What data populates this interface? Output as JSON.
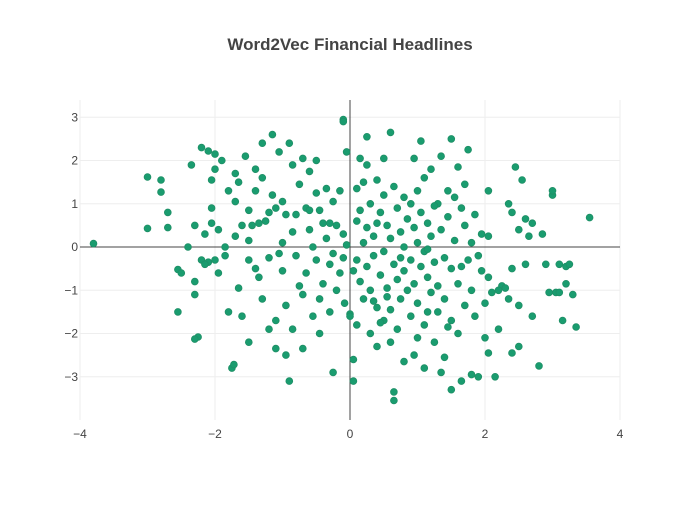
{
  "chart_data": {
    "type": "scatter",
    "title": "Word2Vec Financial Headlines",
    "xlabel": "",
    "ylabel": "",
    "xlim": [
      -4,
      4
    ],
    "ylim": [
      -4,
      3.4
    ],
    "x_ticks": [
      -4,
      -2,
      0,
      2,
      4
    ],
    "y_ticks": [
      -3,
      -2,
      -1,
      0,
      1,
      2,
      3
    ],
    "x_tick_labels": [
      "−4",
      "−2",
      "0",
      "2",
      "4"
    ],
    "y_tick_labels": [
      "−3",
      "−2",
      "−1",
      "0",
      "1",
      "2",
      "3"
    ],
    "grid": true,
    "zero_lines": true,
    "marker_color": "#1a9c6f",
    "marker_symbol": "circle",
    "series": [
      {
        "points": [
          [
            -3.8,
            0.08
          ],
          [
            -3.0,
            1.62
          ],
          [
            -3.0,
            0.43
          ],
          [
            -2.8,
            1.27
          ],
          [
            -2.8,
            1.55
          ],
          [
            -2.7,
            0.8
          ],
          [
            -2.7,
            0.45
          ],
          [
            -2.55,
            -0.52
          ],
          [
            -2.5,
            -0.6
          ],
          [
            -2.55,
            -1.5
          ],
          [
            -2.4,
            0.0
          ],
          [
            -2.35,
            1.9
          ],
          [
            -2.3,
            0.5
          ],
          [
            -2.3,
            -0.8
          ],
          [
            -2.3,
            -1.1
          ],
          [
            -2.2,
            2.3
          ],
          [
            -2.15,
            0.3
          ],
          [
            -2.2,
            -0.3
          ],
          [
            -2.25,
            -2.08
          ],
          [
            -2.3,
            -2.13
          ],
          [
            -2.1,
            2.22
          ],
          [
            -2.05,
            1.55
          ],
          [
            -2.1,
            -0.35
          ],
          [
            -2.0,
            2.15
          ],
          [
            -2.0,
            1.8
          ],
          [
            -2.05,
            0.55
          ],
          [
            -1.95,
            0.4
          ],
          [
            -2.0,
            -0.3
          ],
          [
            -1.95,
            -0.6
          ],
          [
            -1.9,
            2.0
          ],
          [
            -1.85,
            0.0
          ],
          [
            -1.8,
            1.3
          ],
          [
            -1.8,
            -1.5
          ],
          [
            -1.75,
            -2.8
          ],
          [
            -1.72,
            -2.72
          ],
          [
            -1.7,
            1.7
          ],
          [
            -1.7,
            1.05
          ],
          [
            -1.7,
            0.25
          ],
          [
            -1.65,
            -0.95
          ],
          [
            -1.6,
            -1.6
          ],
          [
            -1.55,
            2.1
          ],
          [
            -1.5,
            0.85
          ],
          [
            -1.5,
            0.15
          ],
          [
            -1.5,
            -2.2
          ],
          [
            -1.45,
            0.5
          ],
          [
            -1.4,
            1.8
          ],
          [
            -1.4,
            -0.5
          ],
          [
            -1.35,
            -0.7
          ],
          [
            -1.3,
            2.4
          ],
          [
            -1.3,
            1.6
          ],
          [
            -1.3,
            -1.2
          ],
          [
            -1.25,
            0.6
          ],
          [
            -1.2,
            -0.25
          ],
          [
            -1.2,
            -1.9
          ],
          [
            -1.15,
            2.6
          ],
          [
            -1.15,
            1.2
          ],
          [
            -1.1,
            0.9
          ],
          [
            -1.1,
            -1.7
          ],
          [
            -1.1,
            -2.35
          ],
          [
            -1.05,
            2.2
          ],
          [
            -1.0,
            1.05
          ],
          [
            -1.0,
            0.1
          ],
          [
            -1.0,
            -0.55
          ],
          [
            -0.95,
            -1.35
          ],
          [
            -0.95,
            -2.5
          ],
          [
            -0.9,
            2.4
          ],
          [
            -0.9,
            -3.1
          ],
          [
            -0.85,
            1.9
          ],
          [
            -0.85,
            0.35
          ],
          [
            -0.8,
            0.75
          ],
          [
            -0.8,
            -0.2
          ],
          [
            -0.75,
            1.45
          ],
          [
            -0.75,
            -0.9
          ],
          [
            -0.7,
            2.05
          ],
          [
            -0.7,
            -1.1
          ],
          [
            -0.7,
            -2.35
          ],
          [
            -0.65,
            0.9
          ],
          [
            -0.65,
            -0.6
          ],
          [
            -0.6,
            1.75
          ],
          [
            -0.6,
            0.4
          ],
          [
            -0.55,
            0.0
          ],
          [
            -0.55,
            -1.6
          ],
          [
            -0.5,
            2.0
          ],
          [
            -0.5,
            1.25
          ],
          [
            -0.5,
            -0.3
          ],
          [
            -0.45,
            -1.2
          ],
          [
            -0.45,
            -2.0
          ],
          [
            -0.4,
            0.55
          ],
          [
            -0.4,
            -0.85
          ],
          [
            -0.35,
            1.35
          ],
          [
            -0.35,
            0.2
          ],
          [
            -0.3,
            -0.4
          ],
          [
            -0.3,
            -1.5
          ],
          [
            -0.25,
            1.05
          ],
          [
            -0.25,
            -0.15
          ],
          [
            -0.25,
            -2.9
          ],
          [
            -0.2,
            0.5
          ],
          [
            -0.2,
            -1.0
          ],
          [
            -0.15,
            1.3
          ],
          [
            -0.15,
            -0.6
          ],
          [
            -0.1,
            2.95
          ],
          [
            -0.1,
            2.9
          ],
          [
            -0.1,
            0.3
          ],
          [
            -0.08,
            -1.3
          ],
          [
            -0.05,
            2.2
          ],
          [
            -0.05,
            0.05
          ],
          [
            0.0,
            -1.55
          ],
          [
            0.0,
            -1.6
          ],
          [
            0.05,
            -2.6
          ],
          [
            0.05,
            -3.1
          ],
          [
            0.1,
            1.35
          ],
          [
            0.1,
            0.6
          ],
          [
            0.1,
            -0.3
          ],
          [
            0.1,
            -1.8
          ],
          [
            0.15,
            2.05
          ],
          [
            0.15,
            0.85
          ],
          [
            0.15,
            -0.8
          ],
          [
            0.2,
            1.5
          ],
          [
            0.2,
            0.1
          ],
          [
            0.2,
            -1.2
          ],
          [
            0.25,
            2.55
          ],
          [
            0.25,
            0.45
          ],
          [
            0.25,
            -0.45
          ],
          [
            0.3,
            1.0
          ],
          [
            0.3,
            -1.0
          ],
          [
            0.3,
            -2.0
          ],
          [
            0.35,
            0.25
          ],
          [
            0.35,
            -0.2
          ],
          [
            0.4,
            1.55
          ],
          [
            0.4,
            0.55
          ],
          [
            0.4,
            -1.4
          ],
          [
            0.4,
            -2.3
          ],
          [
            0.45,
            0.8
          ],
          [
            0.45,
            -0.65
          ],
          [
            0.5,
            2.05
          ],
          [
            0.5,
            1.2
          ],
          [
            0.5,
            -0.1
          ],
          [
            0.5,
            -1.7
          ],
          [
            0.55,
            0.5
          ],
          [
            0.55,
            -0.95
          ],
          [
            0.6,
            2.65
          ],
          [
            0.6,
            0.2
          ],
          [
            0.6,
            -1.45
          ],
          [
            0.6,
            -2.2
          ],
          [
            0.65,
            1.4
          ],
          [
            0.65,
            -0.4
          ],
          [
            0.65,
            -3.55
          ],
          [
            0.65,
            -3.35
          ],
          [
            0.7,
            0.9
          ],
          [
            0.7,
            -0.75
          ],
          [
            0.7,
            -1.9
          ],
          [
            0.75,
            0.35
          ],
          [
            0.75,
            -1.2
          ],
          [
            0.8,
            1.15
          ],
          [
            0.8,
            0.0
          ],
          [
            0.8,
            -0.55
          ],
          [
            0.8,
            -2.65
          ],
          [
            0.85,
            0.65
          ],
          [
            0.85,
            -1.0
          ],
          [
            0.9,
            1.0
          ],
          [
            0.9,
            -0.3
          ],
          [
            0.9,
            -1.6
          ],
          [
            0.95,
            2.05
          ],
          [
            0.95,
            0.45
          ],
          [
            0.95,
            -0.85
          ],
          [
            1.0,
            1.3
          ],
          [
            1.0,
            0.1
          ],
          [
            1.0,
            -1.3
          ],
          [
            1.0,
            -2.1
          ],
          [
            1.05,
            2.45
          ],
          [
            1.05,
            0.8
          ],
          [
            1.05,
            -0.45
          ],
          [
            1.1,
            1.6
          ],
          [
            1.1,
            -0.1
          ],
          [
            1.1,
            -1.8
          ],
          [
            1.1,
            -2.8
          ],
          [
            1.15,
            0.55
          ],
          [
            1.15,
            -0.7
          ],
          [
            1.2,
            1.8
          ],
          [
            1.2,
            0.25
          ],
          [
            1.2,
            -1.05
          ],
          [
            1.25,
            -0.35
          ],
          [
            1.25,
            -2.2
          ],
          [
            1.3,
            1.0
          ],
          [
            1.3,
            -0.9
          ],
          [
            1.3,
            -1.5
          ],
          [
            1.35,
            2.1
          ],
          [
            1.35,
            0.4
          ],
          [
            1.4,
            -0.25
          ],
          [
            1.4,
            -1.2
          ],
          [
            1.4,
            -2.55
          ],
          [
            1.45,
            1.3
          ],
          [
            1.45,
            0.7
          ],
          [
            1.5,
            2.5
          ],
          [
            1.5,
            -0.5
          ],
          [
            1.5,
            -1.7
          ],
          [
            1.5,
            -3.3
          ],
          [
            1.55,
            1.15
          ],
          [
            1.55,
            0.15
          ],
          [
            1.6,
            1.85
          ],
          [
            1.6,
            -0.85
          ],
          [
            1.6,
            -2.0
          ],
          [
            1.65,
            0.9
          ],
          [
            1.65,
            -3.1
          ],
          [
            1.7,
            1.45
          ],
          [
            1.7,
            0.5
          ],
          [
            1.7,
            -1.35
          ],
          [
            1.75,
            2.25
          ],
          [
            1.75,
            -0.3
          ],
          [
            1.8,
            0.1
          ],
          [
            1.8,
            -1.0
          ],
          [
            1.8,
            -2.95
          ],
          [
            1.85,
            0.75
          ],
          [
            1.85,
            -1.6
          ],
          [
            1.9,
            -3.0
          ],
          [
            1.95,
            0.3
          ],
          [
            1.95,
            -0.55
          ],
          [
            2.0,
            -1.3
          ],
          [
            2.0,
            -2.1
          ],
          [
            2.05,
            1.3
          ],
          [
            2.05,
            0.25
          ],
          [
            2.05,
            -0.7
          ],
          [
            2.05,
            -2.45
          ],
          [
            2.1,
            -1.05
          ],
          [
            2.15,
            -3.0
          ],
          [
            2.2,
            -1.9
          ],
          [
            2.25,
            -0.9
          ],
          [
            2.3,
            -0.95
          ],
          [
            2.35,
            1.0
          ],
          [
            2.35,
            -1.2
          ],
          [
            2.4,
            0.8
          ],
          [
            2.4,
            -0.5
          ],
          [
            2.4,
            -2.45
          ],
          [
            2.45,
            1.85
          ],
          [
            2.5,
            0.4
          ],
          [
            2.5,
            -1.35
          ],
          [
            2.5,
            -2.3
          ],
          [
            2.55,
            1.55
          ],
          [
            2.6,
            -0.4
          ],
          [
            2.65,
            0.25
          ],
          [
            2.7,
            0.55
          ],
          [
            2.7,
            -1.6
          ],
          [
            2.8,
            -2.75
          ],
          [
            2.85,
            0.3
          ],
          [
            2.9,
            -0.4
          ],
          [
            2.95,
            -1.05
          ],
          [
            3.0,
            1.2
          ],
          [
            3.0,
            1.3
          ],
          [
            3.05,
            -1.05
          ],
          [
            3.1,
            -0.4
          ],
          [
            3.1,
            -1.05
          ],
          [
            3.15,
            -1.7
          ],
          [
            3.2,
            -0.45
          ],
          [
            3.2,
            -0.85
          ],
          [
            3.25,
            -0.4
          ],
          [
            3.3,
            -1.1
          ],
          [
            3.35,
            -1.85
          ],
          [
            3.55,
            0.68
          ],
          [
            -2.15,
            -0.4
          ],
          [
            -1.85,
            -0.2
          ],
          [
            -1.6,
            0.5
          ],
          [
            -1.5,
            -0.3
          ],
          [
            -1.35,
            0.55
          ],
          [
            -1.2,
            0.8
          ],
          [
            -0.95,
            0.75
          ],
          [
            -0.6,
            0.85
          ],
          [
            -0.3,
            0.55
          ],
          [
            -0.1,
            -0.25
          ],
          [
            0.05,
            -0.55
          ],
          [
            0.35,
            -1.25
          ],
          [
            0.55,
            -1.15
          ],
          [
            0.75,
            -0.25
          ],
          [
            1.15,
            -0.05
          ],
          [
            1.25,
            0.95
          ],
          [
            1.45,
            -1.85
          ],
          [
            1.65,
            -0.45
          ],
          [
            1.9,
            -0.2
          ],
          [
            2.2,
            -1.0
          ],
          [
            -0.45,
            0.85
          ],
          [
            -1.05,
            -0.15
          ],
          [
            -1.4,
            1.3
          ],
          [
            -2.05,
            0.9
          ],
          [
            0.95,
            -2.5
          ],
          [
            1.35,
            -2.9
          ],
          [
            0.25,
            1.9
          ],
          [
            -0.85,
            -1.9
          ],
          [
            -1.65,
            1.5
          ],
          [
            2.6,
            0.65
          ],
          [
            0.45,
            -1.75
          ],
          [
            1.15,
            -1.5
          ]
        ]
      }
    ]
  }
}
